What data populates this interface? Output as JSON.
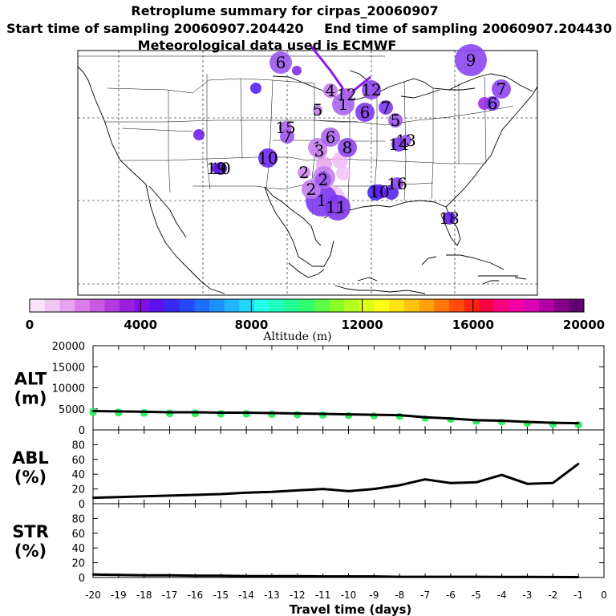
{
  "header": {
    "title": "Retroplume summary for cirpas_20060907",
    "start": "Start time of sampling 20060907.204420",
    "end": "End time of sampling 20060907.204430",
    "met": "Meteorological data used is ECMWF"
  },
  "map": {
    "labels": [
      {
        "n": "1",
        "d": 3.5
      },
      {
        "n": "1",
        "d": 1
      },
      {
        "n": "1",
        "d": 3.5
      },
      {
        "n": "1",
        "d": 1
      },
      {
        "n": "1",
        "d": 2
      },
      {
        "n": "2",
        "d": 0.8
      },
      {
        "n": "2",
        "d": 1.2
      },
      {
        "n": "2",
        "d": 2.5
      },
      {
        "n": "3",
        "d": 0.8
      },
      {
        "n": "4",
        "d": 1.2
      },
      {
        "n": "5",
        "d": 1.2
      },
      {
        "n": "5",
        "d": 2.5
      },
      {
        "n": "6",
        "d": 2.5
      },
      {
        "n": "6",
        "d": 3.5
      },
      {
        "n": "6",
        "d": 2
      },
      {
        "n": "6",
        "d": 3.5
      },
      {
        "n": "7",
        "d": 3
      },
      {
        "n": "7",
        "d": 3.5
      },
      {
        "n": "7",
        "d": 2.5
      },
      {
        "n": "8",
        "d": 3
      },
      {
        "n": "9",
        "d": 3
      },
      {
        "n": "10",
        "d": 4
      },
      {
        "n": "10",
        "d": 4.5
      },
      {
        "n": "10",
        "d": 4.5
      },
      {
        "n": "11",
        "d": 3
      },
      {
        "n": "12",
        "d": 3
      },
      {
        "n": "12",
        "d": 2
      },
      {
        "n": "13",
        "d": 2.5
      },
      {
        "n": "14",
        "d": 3.5
      },
      {
        "n": "15",
        "d": 2
      },
      {
        "n": "16",
        "d": 3
      },
      {
        "n": "18",
        "d": 4.5
      },
      {
        "n": "19",
        "d": 4.5
      }
    ]
  },
  "colorbar": {
    "ticks": [
      "0",
      "4000",
      "8000",
      "12000",
      "16000",
      "20000"
    ],
    "label": "Altitude (m)",
    "colors": [
      "#fbe4fb",
      "#f2c6f4",
      "#e6a3ee",
      "#d97ee8",
      "#c85ae2",
      "#b33ade",
      "#9a1fe0",
      "#7f10e8",
      "#5a12f0",
      "#3a28f6",
      "#2547ff",
      "#1f6cff",
      "#1f91ff",
      "#20b5ff",
      "#20d8ff",
      "#20ffe8",
      "#20ffc0",
      "#22ff96",
      "#30ff6e",
      "#5aff46",
      "#88ff28",
      "#b4ff1e",
      "#dcff18",
      "#ffff1a",
      "#ffe414",
      "#ffc410",
      "#ffa00c",
      "#ff7808",
      "#ff4c08",
      "#ff2410",
      "#ff0044",
      "#ff007e",
      "#f600a6",
      "#dc00b6",
      "#b200a2",
      "#88008a",
      "#600070"
    ]
  },
  "chart_data": [
    {
      "type": "line",
      "name": "ALT",
      "ylabel": "ALT (m)",
      "ylabel_lines": [
        "ALT",
        "(m)"
      ],
      "ylim": [
        0,
        20000
      ],
      "yticks": [
        "0",
        "5000",
        "10000",
        "15000",
        "20000"
      ],
      "x": [
        -20,
        -19,
        -18,
        -17,
        -16,
        -15,
        -14,
        -13,
        -12,
        -11,
        -10,
        -9,
        -8,
        -7,
        -6,
        -5,
        -4,
        -3,
        -2,
        -1
      ],
      "values": [
        4500,
        4400,
        4300,
        4200,
        4200,
        4100,
        4100,
        4000,
        3900,
        3800,
        3700,
        3600,
        3500,
        3000,
        2700,
        2300,
        2200,
        1900,
        1700,
        1600
      ],
      "scatter_color": "#33ee66"
    },
    {
      "type": "line",
      "name": "ABL",
      "ylabel": "ABL (%)",
      "ylabel_lines": [
        "ABL",
        "(%)"
      ],
      "ylim": [
        0,
        100
      ],
      "yticks": [
        "0",
        "20",
        "40",
        "60",
        "80"
      ],
      "x": [
        -20,
        -19,
        -18,
        -17,
        -16,
        -15,
        -14,
        -13,
        -12,
        -11,
        -10,
        -9,
        -8,
        -7,
        -6,
        -5,
        -4,
        -3,
        -2,
        -1
      ],
      "values": [
        8,
        9,
        10,
        11,
        12,
        13,
        15,
        16,
        18,
        20,
        17,
        20,
        25,
        33,
        28,
        29,
        39,
        27,
        28,
        54
      ]
    },
    {
      "type": "line",
      "name": "STR",
      "ylabel": "STR (%)",
      "ylabel_lines": [
        "STR",
        "(%)"
      ],
      "ylim": [
        0,
        100
      ],
      "yticks": [
        "0",
        "20",
        "40",
        "60",
        "80"
      ],
      "x": [
        -20,
        -19,
        -18,
        -17,
        -16,
        -15,
        -14,
        -13,
        -12,
        -11,
        -10,
        -9,
        -8,
        -7,
        -6,
        -5,
        -4,
        -3,
        -2,
        -1
      ],
      "values": [
        4,
        3.5,
        3,
        3,
        2.5,
        2.5,
        2,
        2,
        2,
        1.5,
        1.5,
        1.5,
        1,
        1,
        1,
        1,
        0.8,
        0.8,
        0.6,
        0.5
      ]
    }
  ],
  "xaxis": {
    "ticks": [
      "-20",
      "-19",
      "-18",
      "-17",
      "-16",
      "-15",
      "-14",
      "-13",
      "-12",
      "-11",
      "-10",
      "-9",
      "-8",
      "-7",
      "-6",
      "-5",
      "-4",
      "-3",
      "-2",
      "-1",
      "0"
    ],
    "xlim": [
      -20,
      0
    ],
    "label": "Travel time (days)"
  }
}
